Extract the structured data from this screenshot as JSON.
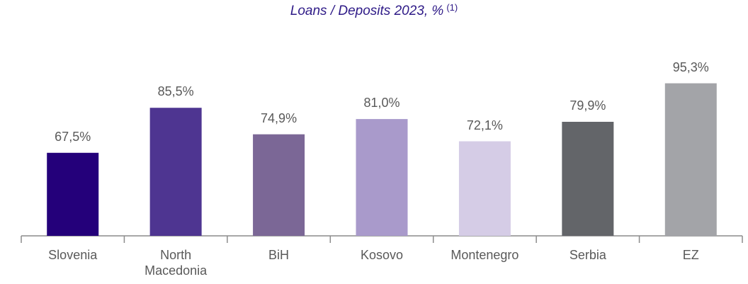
{
  "chart_data": {
    "type": "bar",
    "title": "Loans / Deposits 2023, %",
    "title_note": "(1)",
    "categories": [
      "Slovenia",
      "North Macedonia",
      "BiH",
      "Kosovo",
      "Montenegro",
      "Serbia",
      "EZ"
    ],
    "values": [
      67.5,
      85.5,
      74.9,
      81.0,
      72.1,
      79.9,
      95.3
    ],
    "value_labels": [
      "67,5%",
      "85,5%",
      "74,9%",
      "81,0%",
      "72,1%",
      "79,9%",
      "95,3%"
    ],
    "colors": [
      "#24007a",
      "#4e3591",
      "#7b6796",
      "#a99acb",
      "#d5cce6",
      "#636569",
      "#a3a4a8"
    ],
    "ylim": [
      34.3,
      100
    ]
  }
}
